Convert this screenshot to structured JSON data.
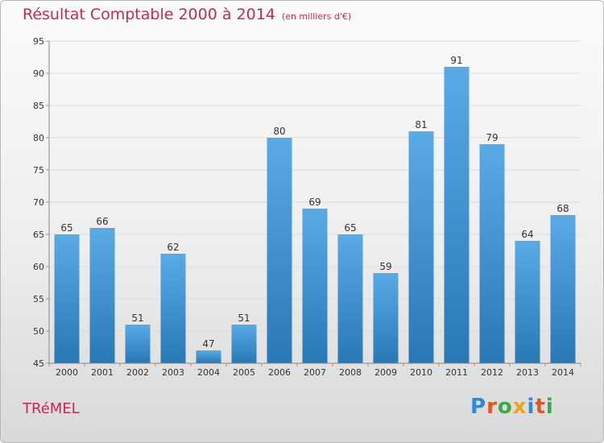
{
  "title": "Résultat Comptable 2000 à 2014",
  "subtitle": "(en milliers d'€)",
  "commune": "TRéMEL",
  "logo": {
    "letters": [
      "P",
      "r",
      "o",
      "x",
      "i",
      "t",
      "i"
    ],
    "colors": [
      "#2d8ad3",
      "#e8541f",
      "#3fa64a",
      "#f0a21a",
      "#2d8ad3",
      "#e8541f",
      "#3fa64a"
    ]
  },
  "colors": {
    "bar_light": "#5aaae6",
    "bar_dark": "#2878b6",
    "title": "#c8275a"
  },
  "chart_data": {
    "type": "bar",
    "title": "Résultat Comptable 2000 à 2014",
    "subtitle": "(en milliers d'€)",
    "categories": [
      "2000",
      "2001",
      "2002",
      "2003",
      "2004",
      "2005",
      "2006",
      "2007",
      "2008",
      "2009",
      "2010",
      "2011",
      "2012",
      "2013",
      "2014"
    ],
    "values": [
      65,
      66,
      51,
      62,
      47,
      51,
      80,
      69,
      65,
      59,
      81,
      91,
      79,
      64,
      68
    ],
    "ylim": [
      45,
      95
    ],
    "yticks": [
      45,
      50,
      55,
      60,
      65,
      70,
      75,
      80,
      85,
      90,
      95
    ],
    "grid": true,
    "legend": "none"
  }
}
